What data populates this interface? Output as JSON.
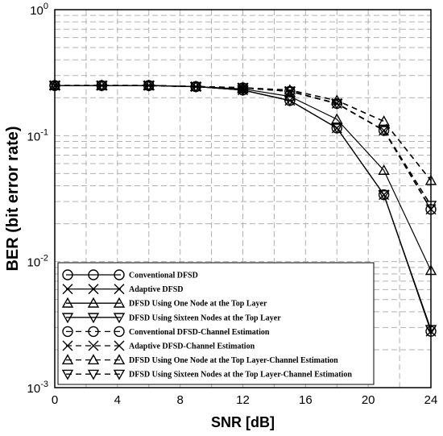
{
  "chart_data": {
    "type": "line",
    "xlabel": "SNR [dB]",
    "ylabel": "BER (bit error rate)",
    "x_ticks": [
      0,
      4,
      8,
      12,
      16,
      20,
      24
    ],
    "y_ticks": [
      {
        "value": 1,
        "base": "10",
        "exp": "0"
      },
      {
        "value": 0.1,
        "base": "10",
        "exp": "-1"
      },
      {
        "value": 0.01,
        "base": "10",
        "exp": "-2"
      },
      {
        "value": 0.001,
        "base": "10",
        "exp": "-3"
      }
    ],
    "xlim": [
      0,
      24
    ],
    "ylim": [
      0.001,
      1
    ],
    "yscale": "log",
    "grid": true,
    "legend_position": "bottom-right",
    "x": [
      0,
      3,
      6,
      9,
      12,
      15,
      18,
      21,
      24
    ],
    "series": [
      {
        "name": "Conventional DFSD",
        "marker": "circle",
        "dashed": false,
        "values": [
          0.25,
          0.25,
          0.25,
          0.245,
          0.23,
          0.19,
          0.115,
          0.034,
          0.0028
        ]
      },
      {
        "name": "Adaptive DFSD",
        "marker": "x",
        "dashed": false,
        "values": [
          0.25,
          0.25,
          0.25,
          0.245,
          0.23,
          0.19,
          0.115,
          0.034,
          0.0028
        ]
      },
      {
        "name": "DFSD Using One Node at the Top Layer",
        "marker": "triangle-up",
        "dashed": false,
        "values": [
          0.25,
          0.25,
          0.25,
          0.245,
          0.235,
          0.205,
          0.135,
          0.053,
          0.0085
        ]
      },
      {
        "name": "DFSD Using Sixteen Nodes at the Top Layer",
        "marker": "triangle-down",
        "dashed": false,
        "values": [
          0.25,
          0.25,
          0.25,
          0.245,
          0.23,
          0.19,
          0.115,
          0.034,
          0.0029
        ]
      },
      {
        "name": "Conventional DFSD-Channel Estimation",
        "marker": "circle",
        "dashed": true,
        "values": [
          0.25,
          0.25,
          0.25,
          0.245,
          0.24,
          0.225,
          0.18,
          0.11,
          0.026
        ]
      },
      {
        "name": "Adaptive DFSD-Channel Estimation",
        "marker": "x",
        "dashed": true,
        "values": [
          0.25,
          0.25,
          0.25,
          0.245,
          0.24,
          0.225,
          0.18,
          0.11,
          0.026
        ]
      },
      {
        "name": "DFSD Using One Node at the Top Layer-Channel Estimation",
        "marker": "triangle-up",
        "dashed": true,
        "values": [
          0.25,
          0.25,
          0.25,
          0.245,
          0.24,
          0.23,
          0.19,
          0.13,
          0.044
        ]
      },
      {
        "name": "DFSD Using Sixteen Nodes at the Top Layer-Channel Estimation",
        "marker": "triangle-down",
        "dashed": true,
        "values": [
          0.25,
          0.25,
          0.25,
          0.245,
          0.24,
          0.225,
          0.18,
          0.11,
          0.028
        ]
      }
    ]
  }
}
